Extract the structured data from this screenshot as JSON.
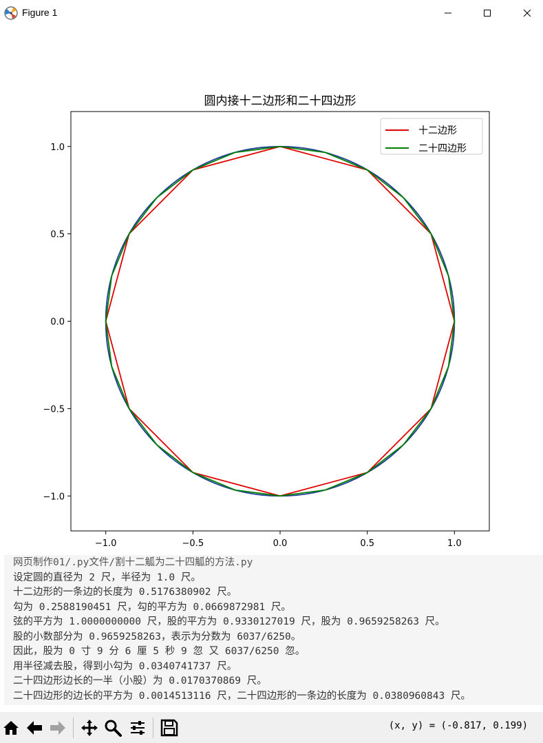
{
  "window": {
    "title": "Figure 1",
    "icon": "matplotlib-icon",
    "buttons": [
      "minimize-icon",
      "maximize-icon",
      "close-icon"
    ]
  },
  "chart_data": {
    "type": "line",
    "title": "圆内接十二边形和二十四边形",
    "xlabel": "",
    "ylabel": "",
    "xlim": [
      -1.2,
      1.2
    ],
    "ylim": [
      -1.2,
      1.2
    ],
    "xticks": [
      -1.0,
      -0.5,
      0.0,
      0.5,
      1.0
    ],
    "yticks": [
      -1.0,
      -0.5,
      0.0,
      0.5,
      1.0
    ],
    "xtick_labels": [
      "−1.0",
      "−0.5",
      "0.0",
      "0.5",
      "1.0"
    ],
    "ytick_labels": [
      "−1.0",
      "−0.5",
      "0.0",
      "0.5",
      "1.0"
    ],
    "grid": false,
    "legend": "top-right",
    "series": [
      {
        "name": "",
        "kind": "circle",
        "radius": 1.0,
        "color": "#1f3f99"
      },
      {
        "name": "十二边形",
        "kind": "polygon",
        "sides": 12,
        "radius": 1.0,
        "color": "#e00000"
      },
      {
        "name": "二十四边形",
        "kind": "polygon",
        "sides": 24,
        "radius": 1.0,
        "color": "#007f00"
      }
    ]
  },
  "console": {
    "lines": [
      "网页制作01/.py文件/割十二觚为二十四觚的方法.py",
      "设定圆的直径为 2 尺，半径为 1.0 尺。",
      "十二边形的一条边的长度为 0.5176380902 尺。",
      "勾为 0.2588190451 尺，勾的平方为 0.0669872981 尺。",
      "弦的平方为 1.0000000000 尺，股的平方为 0.9330127019 尺，股为 0.9659258263 尺。",
      "股的小数部分为 0.9659258263，表示为分数为 6037/6250。",
      "因此，股为 0 寸 9 分 6 厘 5 秒 9 忽 又 6037/6250 忽。",
      "用半径减去股，得到小勾为 0.0340741737 尺。",
      "二十四边形边长的一半（小股）为 0.0170370869 尺。",
      "二十四边形的边长的平方为 0.0014513116 尺，二十四边形的一条边的长度为 0.0380960843 尺。"
    ]
  },
  "toolbar": {
    "tools": [
      "home-icon",
      "back-icon",
      "forward-icon",
      "pan-icon",
      "zoom-icon",
      "configure-icon",
      "save-icon"
    ],
    "coords_text": "(x, y) = (-0.817, 0.199)"
  }
}
